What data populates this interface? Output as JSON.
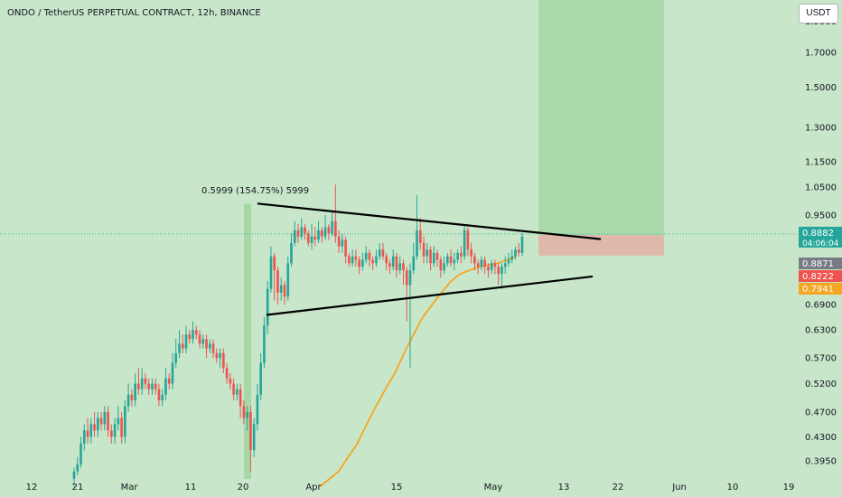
{
  "header": {
    "title": "ONDO / TetherUS PERPETUAL CONTRACT, 12h, BINANCE"
  },
  "currency_button": "USDT",
  "measure_label": "0.5999 (154.75%) 5999",
  "colors": {
    "background": "#c8e6c9",
    "up": "#26a69a",
    "down": "#ef5350",
    "ma": "#f5a623",
    "target_zone": "#a5d6a7",
    "stop_zone": "#e0b4a6",
    "measure_zone": "#9ed59e",
    "trendline": "#000000"
  },
  "chart_data": {
    "type": "candlestick",
    "symbol": "ONDO / TetherUS PERPETUAL CONTRACT",
    "interval": "12h",
    "exchange": "BINANCE",
    "y_axis": {
      "scale": "log",
      "range": [
        0.37,
        2.05
      ],
      "ticks": [
        "1.9000",
        "1.7000",
        "1.5000",
        "1.3000",
        "1.1500",
        "1.0500",
        "0.9500",
        "0.6900",
        "0.6300",
        "0.5700",
        "0.5200",
        "0.4700",
        "0.4300",
        "0.3950"
      ]
    },
    "x_axis": {
      "ticks": [
        "12",
        "21",
        "Mar",
        "11",
        "20",
        "Apr",
        "15",
        "May",
        "13",
        "22",
        "Jun",
        "10",
        "19"
      ]
    },
    "price_labels": [
      {
        "value": "0.8882",
        "sub": "04:06:04",
        "color": "#26a69a"
      },
      {
        "value": "0.8871",
        "color": "#787b86"
      },
      {
        "value": "0.8222",
        "color": "#ef5350"
      },
      {
        "value": "0.7941",
        "color": "#f5a623"
      }
    ],
    "candles": [
      [
        0.37,
        0.38,
        0.36,
        0.385
      ],
      [
        0.38,
        0.39,
        0.375,
        0.4
      ],
      [
        0.39,
        0.42,
        0.385,
        0.43
      ],
      [
        0.42,
        0.44,
        0.41,
        0.45
      ],
      [
        0.44,
        0.43,
        0.42,
        0.46
      ],
      [
        0.43,
        0.45,
        0.42,
        0.46
      ],
      [
        0.45,
        0.44,
        0.43,
        0.47
      ],
      [
        0.44,
        0.46,
        0.43,
        0.47
      ],
      [
        0.46,
        0.45,
        0.44,
        0.47
      ],
      [
        0.45,
        0.47,
        0.44,
        0.48
      ],
      [
        0.47,
        0.44,
        0.43,
        0.48
      ],
      [
        0.44,
        0.43,
        0.42,
        0.45
      ],
      [
        0.43,
        0.45,
        0.42,
        0.46
      ],
      [
        0.45,
        0.46,
        0.44,
        0.48
      ],
      [
        0.46,
        0.43,
        0.42,
        0.47
      ],
      [
        0.43,
        0.48,
        0.42,
        0.49
      ],
      [
        0.48,
        0.5,
        0.47,
        0.52
      ],
      [
        0.5,
        0.49,
        0.48,
        0.51
      ],
      [
        0.49,
        0.52,
        0.48,
        0.54
      ],
      [
        0.52,
        0.51,
        0.5,
        0.55
      ],
      [
        0.51,
        0.53,
        0.5,
        0.55
      ],
      [
        0.53,
        0.52,
        0.51,
        0.54
      ],
      [
        0.52,
        0.51,
        0.5,
        0.53
      ],
      [
        0.51,
        0.52,
        0.5,
        0.53
      ],
      [
        0.52,
        0.51,
        0.5,
        0.53
      ],
      [
        0.51,
        0.49,
        0.48,
        0.52
      ],
      [
        0.49,
        0.5,
        0.48,
        0.51
      ],
      [
        0.5,
        0.53,
        0.49,
        0.55
      ],
      [
        0.53,
        0.52,
        0.51,
        0.54
      ],
      [
        0.52,
        0.56,
        0.51,
        0.58
      ],
      [
        0.56,
        0.58,
        0.55,
        0.61
      ],
      [
        0.58,
        0.6,
        0.57,
        0.63
      ],
      [
        0.6,
        0.59,
        0.58,
        0.62
      ],
      [
        0.59,
        0.62,
        0.58,
        0.64
      ],
      [
        0.62,
        0.61,
        0.6,
        0.63
      ],
      [
        0.61,
        0.63,
        0.6,
        0.65
      ],
      [
        0.63,
        0.62,
        0.61,
        0.64
      ],
      [
        0.62,
        0.6,
        0.59,
        0.63
      ],
      [
        0.6,
        0.61,
        0.59,
        0.62
      ],
      [
        0.61,
        0.59,
        0.57,
        0.62
      ],
      [
        0.59,
        0.6,
        0.58,
        0.61
      ],
      [
        0.6,
        0.58,
        0.57,
        0.61
      ],
      [
        0.58,
        0.57,
        0.56,
        0.59
      ],
      [
        0.57,
        0.58,
        0.55,
        0.59
      ],
      [
        0.58,
        0.55,
        0.54,
        0.59
      ],
      [
        0.55,
        0.53,
        0.52,
        0.56
      ],
      [
        0.53,
        0.52,
        0.51,
        0.54
      ],
      [
        0.52,
        0.5,
        0.49,
        0.53
      ],
      [
        0.5,
        0.51,
        0.49,
        0.52
      ],
      [
        0.51,
        0.48,
        0.46,
        0.52
      ],
      [
        0.48,
        0.46,
        0.45,
        0.49
      ],
      [
        0.46,
        0.47,
        0.44,
        0.48
      ],
      [
        0.47,
        0.41,
        0.38,
        0.48
      ],
      [
        0.41,
        0.45,
        0.4,
        0.46
      ],
      [
        0.45,
        0.5,
        0.44,
        0.52
      ],
      [
        0.5,
        0.56,
        0.49,
        0.58
      ],
      [
        0.56,
        0.64,
        0.55,
        0.66
      ],
      [
        0.64,
        0.73,
        0.62,
        0.75
      ],
      [
        0.73,
        0.82,
        0.72,
        0.85
      ],
      [
        0.82,
        0.78,
        0.7,
        0.83
      ],
      [
        0.78,
        0.72,
        0.69,
        0.79
      ],
      [
        0.72,
        0.74,
        0.7,
        0.76
      ],
      [
        0.74,
        0.71,
        0.69,
        0.75
      ],
      [
        0.71,
        0.8,
        0.7,
        0.82
      ],
      [
        0.8,
        0.86,
        0.79,
        0.89
      ],
      [
        0.86,
        0.9,
        0.85,
        0.93
      ],
      [
        0.9,
        0.88,
        0.86,
        0.92
      ],
      [
        0.88,
        0.91,
        0.87,
        0.94
      ],
      [
        0.91,
        0.89,
        0.87,
        0.92
      ],
      [
        0.89,
        0.86,
        0.85,
        0.9
      ],
      [
        0.86,
        0.88,
        0.84,
        0.92
      ],
      [
        0.88,
        0.87,
        0.85,
        0.91
      ],
      [
        0.87,
        0.9,
        0.86,
        0.93
      ],
      [
        0.9,
        0.88,
        0.86,
        0.91
      ],
      [
        0.88,
        0.91,
        0.87,
        0.95
      ],
      [
        0.91,
        0.89,
        0.87,
        0.92
      ],
      [
        0.89,
        0.93,
        0.88,
        0.96
      ],
      [
        0.93,
        0.88,
        0.86,
        1.06
      ],
      [
        0.88,
        0.85,
        0.83,
        0.9
      ],
      [
        0.85,
        0.87,
        0.83,
        0.89
      ],
      [
        0.87,
        0.82,
        0.8,
        0.88
      ],
      [
        0.82,
        0.8,
        0.79,
        0.83
      ],
      [
        0.8,
        0.82,
        0.79,
        0.84
      ],
      [
        0.82,
        0.81,
        0.79,
        0.84
      ],
      [
        0.81,
        0.79,
        0.77,
        0.82
      ],
      [
        0.79,
        0.81,
        0.78,
        0.83
      ],
      [
        0.81,
        0.83,
        0.8,
        0.85
      ],
      [
        0.83,
        0.81,
        0.79,
        0.84
      ],
      [
        0.81,
        0.8,
        0.78,
        0.82
      ],
      [
        0.8,
        0.82,
        0.79,
        0.84
      ],
      [
        0.82,
        0.84,
        0.81,
        0.86
      ],
      [
        0.84,
        0.82,
        0.81,
        0.86
      ],
      [
        0.82,
        0.8,
        0.78,
        0.83
      ],
      [
        0.8,
        0.79,
        0.77,
        0.81
      ],
      [
        0.79,
        0.82,
        0.78,
        0.84
      ],
      [
        0.82,
        0.78,
        0.76,
        0.83
      ],
      [
        0.78,
        0.8,
        0.77,
        0.82
      ],
      [
        0.8,
        0.78,
        0.74,
        0.81
      ],
      [
        0.78,
        0.74,
        0.65,
        0.79
      ],
      [
        0.74,
        0.78,
        0.55,
        0.8
      ],
      [
        0.78,
        0.82,
        0.77,
        0.86
      ],
      [
        0.82,
        0.9,
        0.81,
        1.02
      ],
      [
        0.9,
        0.86,
        0.84,
        0.94
      ],
      [
        0.86,
        0.82,
        0.8,
        0.88
      ],
      [
        0.82,
        0.84,
        0.8,
        0.86
      ],
      [
        0.84,
        0.8,
        0.78,
        0.85
      ],
      [
        0.8,
        0.83,
        0.79,
        0.85
      ],
      [
        0.83,
        0.81,
        0.79,
        0.84
      ],
      [
        0.81,
        0.78,
        0.76,
        0.82
      ],
      [
        0.78,
        0.8,
        0.77,
        0.82
      ],
      [
        0.8,
        0.82,
        0.79,
        0.83
      ],
      [
        0.82,
        0.8,
        0.79,
        0.84
      ],
      [
        0.8,
        0.81,
        0.78,
        0.83
      ],
      [
        0.81,
        0.83,
        0.8,
        0.84
      ],
      [
        0.83,
        0.82,
        0.8,
        0.85
      ],
      [
        0.82,
        0.9,
        0.81,
        0.92
      ],
      [
        0.9,
        0.84,
        0.82,
        0.91
      ],
      [
        0.84,
        0.82,
        0.8,
        0.86
      ],
      [
        0.82,
        0.8,
        0.78,
        0.83
      ],
      [
        0.8,
        0.79,
        0.77,
        0.81
      ],
      [
        0.79,
        0.81,
        0.78,
        0.82
      ],
      [
        0.81,
        0.79,
        0.77,
        0.82
      ],
      [
        0.79,
        0.78,
        0.76,
        0.8
      ],
      [
        0.78,
        0.8,
        0.77,
        0.81
      ],
      [
        0.8,
        0.79,
        0.77,
        0.81
      ],
      [
        0.79,
        0.77,
        0.74,
        0.8
      ],
      [
        0.77,
        0.79,
        0.73,
        0.8
      ],
      [
        0.79,
        0.8,
        0.77,
        0.82
      ],
      [
        0.8,
        0.81,
        0.79,
        0.83
      ],
      [
        0.81,
        0.82,
        0.8,
        0.84
      ],
      [
        0.82,
        0.84,
        0.81,
        0.85
      ],
      [
        0.84,
        0.83,
        0.82,
        0.86
      ],
      [
        0.83,
        0.88,
        0.82,
        0.89
      ]
    ],
    "moving_average": [
      [
        0.36,
        0.36
      ],
      [
        0.39,
        0.37
      ],
      [
        0.42,
        0.38
      ],
      [
        0.45,
        0.4
      ],
      [
        0.48,
        0.42
      ],
      [
        0.51,
        0.45
      ],
      [
        0.54,
        0.48
      ],
      [
        0.57,
        0.51
      ],
      [
        0.6,
        0.54
      ],
      [
        0.63,
        0.58
      ],
      [
        0.66,
        0.62
      ],
      [
        0.69,
        0.66
      ],
      [
        0.72,
        0.69
      ],
      [
        0.75,
        0.72
      ],
      [
        0.78,
        0.75
      ],
      [
        0.81,
        0.77
      ],
      [
        0.84,
        0.78
      ],
      [
        0.87,
        0.79
      ],
      [
        0.9,
        0.795
      ],
      [
        0.93,
        0.8
      ],
      [
        0.96,
        0.81
      ],
      [
        0.99,
        0.82
      ]
    ],
    "annotations": {
      "upper_trendline": [
        [
          0.0,
          0.99
        ],
        [
          1.0,
          0.872
        ]
      ],
      "lower_trendline": [
        [
          0.0,
          0.665
        ],
        [
          1.0,
          0.763
        ]
      ],
      "measure": {
        "top": 0.99,
        "bottom": 0.37,
        "text": "0.5999 (154.75%) 5999"
      },
      "target_zone": {
        "top": 2.05,
        "bottom": 0.885
      },
      "stop_zone": {
        "top": 0.885,
        "bottom": 0.822
      },
      "current_price_line": 0.8882
    }
  }
}
